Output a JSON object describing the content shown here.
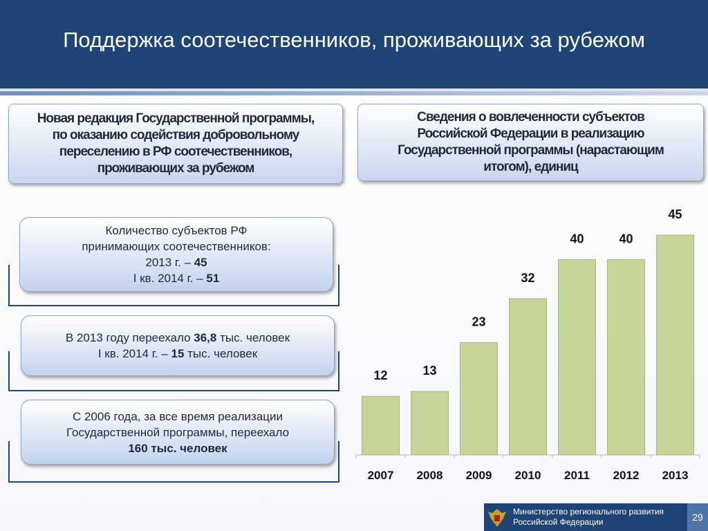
{
  "header": {
    "title": "Поддержка соотечественников, проживающих за рубежом"
  },
  "left_heading": [
    "Новая редакция  Государственной программы,",
    "по оказанию содействия добровольному",
    "переселению в РФ соотечественников,",
    "проживающих за рубежом"
  ],
  "right_heading": [
    "Сведения о вовлеченности субъектов",
    "Российской Федерации в реализацию",
    "Государственной программы (нарастающим",
    "итогом), единиц"
  ],
  "info_boxes": [
    {
      "lines": [
        [
          {
            "text": "Количество субъектов РФ"
          }
        ],
        [
          {
            "text": "принимающих соотечественников:"
          }
        ],
        [
          {
            "text": "2013 г. – "
          },
          {
            "text": "45",
            "bold": true
          }
        ],
        [
          {
            "text": "I кв. 2014 г. – "
          },
          {
            "text": "51",
            "bold": true
          }
        ]
      ]
    },
    {
      "lines": [
        [
          {
            "text": "В 2013 году переехало "
          },
          {
            "text": "36,8",
            "bold": true
          },
          {
            "text": " тыс. человек"
          }
        ],
        [
          {
            "text": "I кв. 2014 г. – "
          },
          {
            "text": "15",
            "bold": true
          },
          {
            "text": " тыс. человек"
          }
        ]
      ]
    },
    {
      "lines": [
        [
          {
            "text": "С 2006 года, за все время реализации"
          }
        ],
        [
          {
            "text": "Государственной программы, переехало"
          }
        ],
        [
          {
            "text": "160 тыс. человек",
            "bold": true
          }
        ]
      ]
    }
  ],
  "chart_data": {
    "type": "bar",
    "categories": [
      "2007",
      "2008",
      "2009",
      "2010",
      "2011",
      "2012",
      "2013"
    ],
    "values": [
      12,
      13,
      23,
      32,
      40,
      40,
      45
    ],
    "color": "#c6d49a"
  },
  "footer": {
    "ministry": [
      "Министерство регионального развития",
      "Российской Федерации"
    ],
    "page": "29"
  }
}
